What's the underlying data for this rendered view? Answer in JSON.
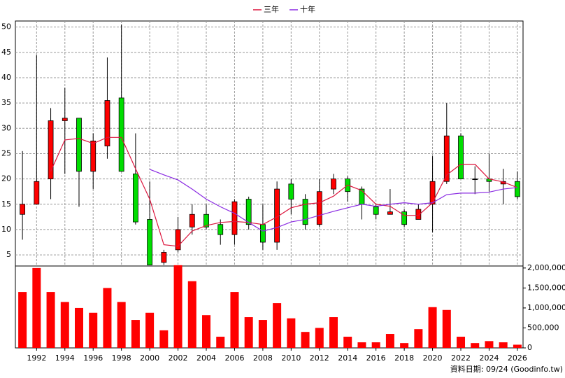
{
  "chart_data": {
    "type": "candlestick",
    "x": [
      1991,
      1992,
      1993,
      1994,
      1995,
      1996,
      1997,
      1998,
      1999,
      2000,
      2001,
      2002,
      2003,
      2004,
      2005,
      2006,
      2007,
      2008,
      2009,
      2010,
      2011,
      2012,
      2013,
      2014,
      2015,
      2016,
      2017,
      2018,
      2019,
      2020,
      2021,
      2022,
      2023,
      2024,
      2025,
      2026
    ],
    "xlim": [
      1990.5,
      2026.4
    ],
    "xticks": [
      1992,
      1994,
      1996,
      1998,
      2000,
      2002,
      2004,
      2006,
      2008,
      2010,
      2012,
      2014,
      2016,
      2018,
      2020,
      2022,
      2024,
      2026
    ],
    "ylim": [
      2.8,
      51.2
    ],
    "yticks": [
      5,
      10,
      15,
      20,
      25,
      30,
      35,
      40,
      45,
      50
    ],
    "y2lim": [
      0,
      2050000
    ],
    "y2ticks": [
      {
        "value": 0,
        "label": "0"
      },
      {
        "value": 500000,
        "label": "500,000"
      },
      {
        "value": 1000000,
        "label": "1,000,000"
      },
      {
        "value": 1500000,
        "label": "1,500,000"
      },
      {
        "value": 2000000,
        "label": "2,000,000"
      }
    ],
    "grid": true,
    "up_color": "#ff0000",
    "down_color": "#00dd00",
    "open": [
      13,
      15,
      20,
      31.5,
      32,
      21.5,
      26.5,
      36,
      21,
      12,
      3.5,
      6,
      10.5,
      13,
      11,
      9,
      16,
      11,
      7.5,
      19,
      16,
      11,
      18,
      20,
      18,
      14.5,
      13,
      13.5,
      12,
      15,
      19.5,
      28.5,
      20,
      20,
      19,
      19.5
    ],
    "high": [
      25.5,
      44.5,
      34,
      38,
      32,
      29,
      44,
      50.5,
      29,
      19.5,
      6,
      12.5,
      15,
      15,
      12,
      16,
      16.5,
      15,
      19.5,
      20,
      17,
      20,
      21,
      20.5,
      18.5,
      15,
      18,
      14,
      15,
      24.5,
      35,
      29,
      22.5,
      25,
      22,
      21.5
    ],
    "low": [
      8,
      15,
      16,
      21,
      14.5,
      18,
      24,
      21.5,
      11,
      3,
      3,
      5.5,
      9,
      10,
      7,
      7,
      10,
      6,
      6,
      13,
      10,
      10.5,
      17,
      15.5,
      12,
      12,
      13,
      10.5,
      12,
      9.5,
      19,
      20,
      17,
      17.5,
      15,
      16
    ],
    "close": [
      15,
      19.5,
      31.5,
      32,
      21.5,
      27.5,
      35.5,
      21.5,
      11.5,
      3,
      5.5,
      10,
      13,
      10.5,
      9,
      15.5,
      11,
      7.5,
      18,
      16,
      11,
      17.5,
      20,
      17.5,
      15,
      13,
      13.5,
      11,
      14,
      19.5,
      28.5,
      20,
      20,
      19.5,
      19.5,
      16.5
    ],
    "series": [
      {
        "name": "三年",
        "color": "#dc143c",
        "values": [
          null,
          null,
          21.5,
          27.7,
          28,
          27,
          28.2,
          28.2,
          22,
          16,
          7,
          6.7,
          9.7,
          10.8,
          11.4,
          11.6,
          11.4,
          11,
          12.5,
          14.3,
          15,
          15.3,
          16.6,
          18.8,
          17.7,
          15,
          14.6,
          12.8,
          12.8,
          15.3,
          20.8,
          22.9,
          22.9,
          20,
          19.4,
          18.3
        ]
      },
      {
        "name": "十年",
        "color": "#8a2be2",
        "values": [
          null,
          null,
          null,
          null,
          null,
          null,
          null,
          null,
          null,
          21.9,
          20.8,
          19.8,
          18,
          16,
          14.5,
          13.2,
          11.4,
          9.7,
          10.4,
          11.5,
          12,
          12.8,
          13.6,
          14.3,
          15,
          14.6,
          15,
          15.3,
          15,
          15.3,
          16.9,
          17.2,
          17.2,
          17.4,
          18,
          18.3
        ]
      }
    ],
    "volume": {
      "axis": "y2",
      "color": "#ff0000",
      "values": [
        1400000,
        2000000,
        1400000,
        1150000,
        1000000,
        880000,
        1500000,
        1150000,
        700000,
        880000,
        440000,
        2070000,
        1670000,
        820000,
        280000,
        1400000,
        770000,
        700000,
        1120000,
        740000,
        400000,
        500000,
        770000,
        280000,
        140000,
        140000,
        350000,
        120000,
        470000,
        1020000,
        950000,
        280000,
        120000,
        170000,
        140000,
        80000
      ]
    },
    "footer": "資料日期: 09/24 (Goodinfo.tw)"
  }
}
